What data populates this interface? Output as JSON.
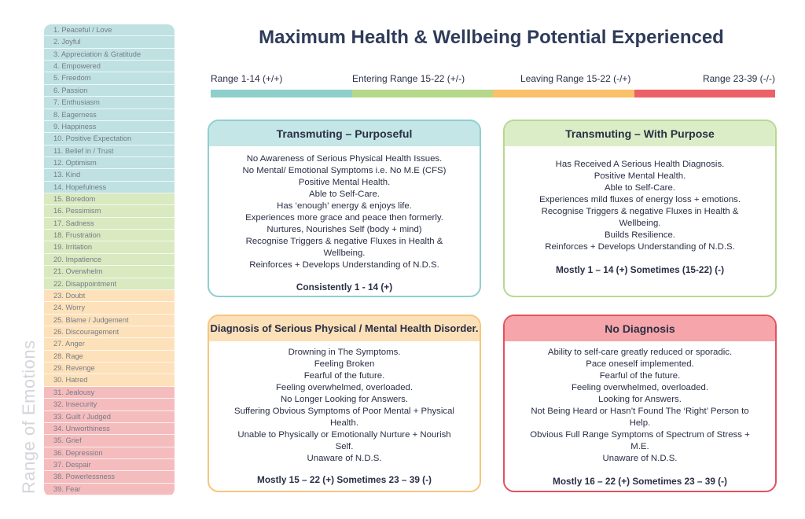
{
  "side_label": "Range of Emotions",
  "title": "Maximum Health & Wellbeing Potential Experienced",
  "ranges": [
    {
      "label": "Range 1-14 (+/+)",
      "color": "#8ecfcb"
    },
    {
      "label": "Entering Range 15-22 (+/-)",
      "color": "#b6d88a"
    },
    {
      "label": "Leaving Range 15-22 (-/+)",
      "color": "#fbc06a"
    },
    {
      "label": "Range 23-39 (-/-)",
      "color": "#ec6168"
    }
  ],
  "emotions": [
    "1. Peaceful / Love",
    "2. Joyful",
    "3. Appreciation & Gratitude",
    "4. Empowered",
    "5. Freedom",
    "6. Passion",
    "7. Enthusiasm",
    "8. Eagerness",
    "9. Happiness",
    "10. Positive Expectation",
    "11. Belief in / Trust",
    "12. Optimism",
    "13. Kind",
    "14. Hopefulness",
    "15. Boredom",
    "16. Pessimism",
    "17. Sadness",
    "18. Frustration",
    "19. Irritation",
    "20. Impatience",
    "21. Overwhelm",
    "22. Disappointment",
    "23. Doubt",
    "24. Worry",
    "25. Blame / Judgement",
    "26. Discouragement",
    "27. Anger",
    "28. Rage",
    "29. Revenge",
    "30. Hatred",
    "31. Jealousy",
    "32. Insecurity",
    "33. Guilt / Judged",
    "34. Unworthiness",
    "35. Grief",
    "36. Depression",
    "37. Despair",
    "38. Powerlessness",
    "39. Fear"
  ],
  "boxes": {
    "top_left": {
      "title": "Transmuting – Purposeful",
      "lines": [
        "No Awareness of Serious Physical Health Issues.",
        "No Mental/ Emotional Symptoms i.e. No M.E (CFS)",
        "Positive Mental Health.",
        "Able to Self-Care.",
        "Has ‘enough’ energy & enjoys life.",
        "Experiences more grace and peace then formerly.",
        "Nurtures, Nourishes Self (body + mind)",
        "Recognise Triggers & negative Fluxes in Health &",
        "Wellbeing.",
        "Reinforces + Develops Understanding of N.D.S."
      ],
      "summary": "Consistently 1 - 14 (+)"
    },
    "top_right": {
      "title": "Transmuting – With Purpose",
      "lines": [
        "Has Received A Serious Health Diagnosis.",
        "Positive Mental Health.",
        "Able to Self-Care.",
        "Experiences mild fluxes of energy loss + emotions.",
        "Recognise Triggers & negative Fluxes in Health &",
        "Wellbeing.",
        "Builds Resilience.",
        "Reinforces + Develops Understanding of N.D.S."
      ],
      "summary": "Mostly 1 – 14 (+) Sometimes (15-22) (-)"
    },
    "bottom_left": {
      "title": "Diagnosis of Serious Physical / Mental Health Disorder.",
      "lines": [
        "Drowning in The Symptoms.",
        "Feeling Broken",
        "Fearful of the future.",
        "Feeling overwhelmed, overloaded.",
        "No Longer Looking for Answers.",
        "Suffering Obvious Symptoms of Poor Mental + Physical",
        "Health.",
        "Unable to Physically or Emotionally Nurture + Nourish",
        "Self.",
        "Unaware of N.D.S."
      ],
      "summary": "Mostly 15 – 22 (+) Sometimes 23 – 39 (-)"
    },
    "bottom_right": {
      "title": "No Diagnosis",
      "lines": [
        "Ability to self-care greatly reduced or sporadic.",
        "Pace oneself implemented.",
        "Fearful of the future.",
        "Feeling overwhelmed, overloaded.",
        "Looking for Answers.",
        "Not Being Heard or Hasn’t Found The ‘Right’ Person to",
        "Help.",
        "Obvious Full Range Symptoms of Spectrum of Stress +",
        "M.E.",
        "Unaware of N.D.S."
      ],
      "summary": "Mostly 16 – 22 (+) Sometimes 23 – 39 (-)"
    }
  }
}
